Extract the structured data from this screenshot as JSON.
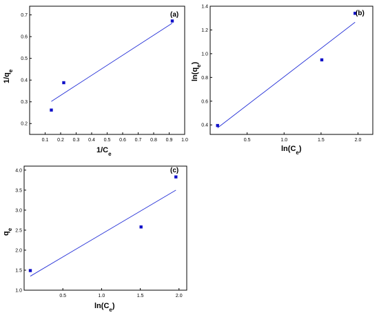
{
  "colors": {
    "line": "#1f2bd6",
    "marker": "#1010c8",
    "axis": "#000000"
  },
  "chart_data": [
    {
      "panel": "(a)",
      "type": "scatter",
      "x": [
        0.14,
        0.22,
        0.92
      ],
      "y": [
        0.262,
        0.388,
        0.672
      ],
      "fit_line": {
        "x": [
          0.14,
          0.92
        ],
        "y": [
          0.302,
          0.662
        ]
      },
      "xlim": [
        0.0,
        1.0
      ],
      "ylim": [
        0.15,
        0.74
      ],
      "xticks": [
        "0.1",
        "0.2",
        "0.3",
        "0.4",
        "0.5",
        "0.6",
        "0.7",
        "0.8",
        "0.9",
        "1.0"
      ],
      "yticks": [
        "0.2",
        "0.3",
        "0.4",
        "0.5",
        "0.6",
        "0.7"
      ],
      "xlabel": {
        "base": "1/C",
        "sub": "e"
      },
      "ylabel": {
        "base": "1/q",
        "sub": "e"
      }
    },
    {
      "panel": "(b)",
      "type": "scatter",
      "x": [
        0.1,
        1.51,
        1.96
      ],
      "y": [
        0.395,
        0.948,
        1.34
      ],
      "fit_line": {
        "x": [
          0.1,
          1.96
        ],
        "y": [
          0.375,
          1.265
        ]
      },
      "xlim": [
        0.0,
        2.2
      ],
      "ylim": [
        0.32,
        1.4
      ],
      "xticks": [
        "0.5",
        "1.0",
        "1.5",
        "2.0"
      ],
      "yticks": [
        "0.4",
        "0.6",
        "0.8",
        "1.0",
        "1.2",
        "1.4"
      ],
      "xlabel": {
        "base": "ln(C",
        "sub": "e",
        "close": ")"
      },
      "ylabel": {
        "base": "ln(q",
        "sub": "e",
        "close": ")"
      }
    },
    {
      "panel": "(c)",
      "type": "scatter",
      "x": [
        0.08,
        1.51,
        1.96
      ],
      "y": [
        1.49,
        2.58,
        3.83
      ],
      "fit_line": {
        "x": [
          0.08,
          1.96
        ],
        "y": [
          1.35,
          3.5
        ]
      },
      "xlim": [
        0.0,
        2.1
      ],
      "ylim": [
        1.0,
        4.1
      ],
      "xticks": [
        "0.5",
        "1.0",
        "1.5",
        "2.0"
      ],
      "yticks": [
        "1.0",
        "1.5",
        "2.0",
        "2.5",
        "3.0",
        "3.5",
        "4.0"
      ],
      "xlabel": {
        "base": "ln(C",
        "sub": "e",
        "close": ")"
      },
      "ylabel": {
        "base": "q",
        "sub": "e"
      }
    }
  ]
}
